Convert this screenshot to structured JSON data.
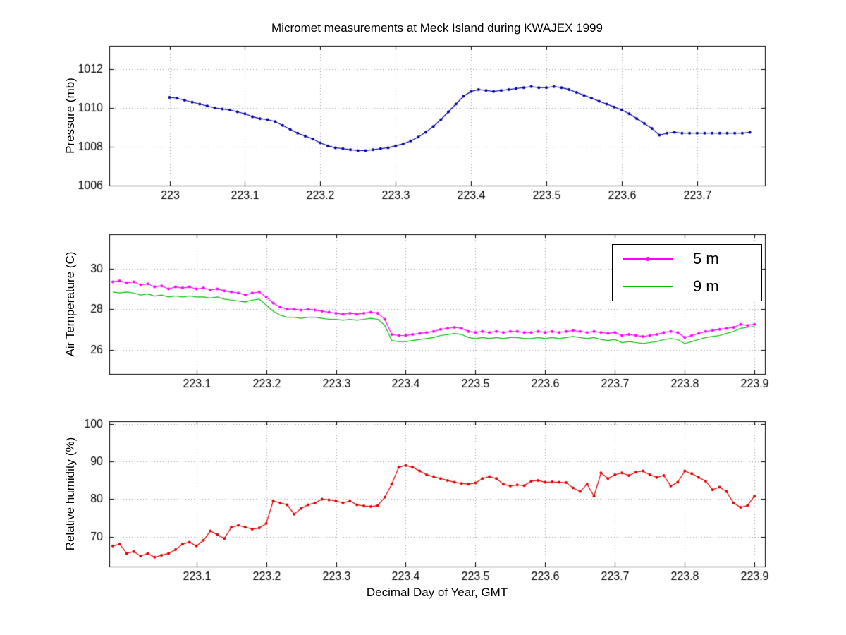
{
  "figure": {
    "title": "Micromet measurements at Meck Island during KWAJEX 1999",
    "xlabel": "Decimal Day of Year, GMT",
    "background": "#ffffff"
  },
  "chart_data": [
    {
      "type": "line",
      "ylabel": "Pressure (mb)",
      "xlim": [
        222.92,
        223.79
      ],
      "ylim": [
        1006,
        1013.2
      ],
      "grid": true,
      "xtick_values": [
        223,
        223.1,
        223.2,
        223.3,
        223.4,
        223.5,
        223.6,
        223.7
      ],
      "xtick_labels": [
        "223",
        "223.1",
        "223.2",
        "223.3",
        "223.4",
        "223.5",
        "223.6",
        "223.7"
      ],
      "ytick_values": [
        1006,
        1008,
        1010,
        1012
      ],
      "ytick_labels": [
        "1006",
        "1008",
        "1010",
        "1012"
      ],
      "series": [
        {
          "name": "Pressure",
          "color": "#0000A8",
          "marker": "dot",
          "x_start": 223.0,
          "x_step": 0.01,
          "values": [
            1010.55,
            1010.5,
            1010.4,
            1010.3,
            1010.2,
            1010.1,
            1010.0,
            1009.95,
            1009.9,
            1009.8,
            1009.7,
            1009.55,
            1009.45,
            1009.4,
            1009.3,
            1009.1,
            1008.9,
            1008.7,
            1008.55,
            1008.4,
            1008.2,
            1008.05,
            1007.95,
            1007.9,
            1007.85,
            1007.8,
            1007.8,
            1007.85,
            1007.9,
            1007.95,
            1008.05,
            1008.15,
            1008.3,
            1008.5,
            1008.75,
            1009.05,
            1009.4,
            1009.8,
            1010.2,
            1010.6,
            1010.85,
            1010.95,
            1010.9,
            1010.85,
            1010.9,
            1010.95,
            1011.0,
            1011.05,
            1011.1,
            1011.05,
            1011.05,
            1011.1,
            1011.05,
            1010.95,
            1010.8,
            1010.65,
            1010.5,
            1010.35,
            1010.2,
            1010.05,
            1009.9,
            1009.7,
            1009.45,
            1009.2,
            1008.95,
            1008.6,
            1008.7,
            1008.75,
            1008.7,
            1008.7,
            1008.7,
            1008.7,
            1008.7,
            1008.7,
            1008.7,
            1008.7,
            1008.7,
            1008.75
          ]
        }
      ]
    },
    {
      "type": "line",
      "ylabel": "Air Temperature (C)",
      "xlim": [
        222.975,
        223.915
      ],
      "ylim": [
        24.8,
        31.7
      ],
      "grid": true,
      "legend_position": "northeast",
      "xtick_values": [
        223.1,
        223.2,
        223.3,
        223.4,
        223.5,
        223.6,
        223.7,
        223.8,
        223.9
      ],
      "xtick_labels": [
        "223.1",
        "223.2",
        "223.3",
        "223.4",
        "223.5",
        "223.6",
        "223.7",
        "223.8",
        "223.9"
      ],
      "ytick_values": [
        26,
        28,
        30
      ],
      "ytick_labels": [
        "26",
        "28",
        "30"
      ],
      "series": [
        {
          "name": "5 m",
          "color": "#FF00FF",
          "marker": "dot",
          "x_start": 222.98,
          "x_step": 0.01,
          "values": [
            29.35,
            29.4,
            29.3,
            29.35,
            29.2,
            29.25,
            29.1,
            29.15,
            29.0,
            29.1,
            29.05,
            29.1,
            29.0,
            29.05,
            28.95,
            29.0,
            28.9,
            28.85,
            28.8,
            28.7,
            28.8,
            28.85,
            28.6,
            28.3,
            28.1,
            28.0,
            28.0,
            27.95,
            28.0,
            27.95,
            27.9,
            27.85,
            27.8,
            27.75,
            27.8,
            27.75,
            27.8,
            27.85,
            27.8,
            27.5,
            26.75,
            26.7,
            26.7,
            26.75,
            26.8,
            26.85,
            26.9,
            27.0,
            27.05,
            27.1,
            27.05,
            26.9,
            26.85,
            26.9,
            26.85,
            26.9,
            26.85,
            26.9,
            26.9,
            26.85,
            26.85,
            26.9,
            26.85,
            26.9,
            26.85,
            26.9,
            26.95,
            26.9,
            26.85,
            26.9,
            26.85,
            26.8,
            26.85,
            26.7,
            26.75,
            26.7,
            26.65,
            26.7,
            26.75,
            26.85,
            26.9,
            26.85,
            26.6,
            26.7,
            26.8,
            26.9,
            26.95,
            27.0,
            27.05,
            27.1,
            27.25,
            27.2,
            27.25
          ]
        },
        {
          "name": "9 m",
          "color": "#00BB00",
          "marker": "none",
          "x_start": 222.98,
          "x_step": 0.01,
          "values": [
            28.85,
            28.8,
            28.85,
            28.8,
            28.7,
            28.75,
            28.65,
            28.7,
            28.6,
            28.65,
            28.6,
            28.65,
            28.6,
            28.6,
            28.55,
            28.6,
            28.5,
            28.45,
            28.4,
            28.35,
            28.45,
            28.5,
            28.2,
            27.9,
            27.7,
            27.6,
            27.6,
            27.55,
            27.6,
            27.6,
            27.55,
            27.5,
            27.5,
            27.45,
            27.5,
            27.45,
            27.5,
            27.55,
            27.5,
            27.2,
            26.45,
            26.4,
            26.4,
            26.45,
            26.5,
            26.55,
            26.6,
            26.7,
            26.75,
            26.8,
            26.75,
            26.6,
            26.55,
            26.6,
            26.55,
            26.6,
            26.55,
            26.6,
            26.6,
            26.55,
            26.55,
            26.6,
            26.55,
            26.6,
            26.55,
            26.6,
            26.65,
            26.6,
            26.55,
            26.6,
            26.5,
            26.45,
            26.5,
            26.35,
            26.4,
            26.35,
            26.3,
            26.35,
            26.4,
            26.5,
            26.55,
            26.5,
            26.3,
            26.4,
            26.5,
            26.6,
            26.65,
            26.7,
            26.8,
            26.9,
            27.05,
            27.1,
            27.15
          ]
        }
      ]
    },
    {
      "type": "line",
      "ylabel": "Relative humidity (%)",
      "xlim": [
        222.975,
        223.915
      ],
      "ylim": [
        62,
        100.8
      ],
      "grid": true,
      "xtick_values": [
        223.1,
        223.2,
        223.3,
        223.4,
        223.5,
        223.6,
        223.7,
        223.8,
        223.9
      ],
      "xtick_labels": [
        "223.1",
        "223.2",
        "223.3",
        "223.4",
        "223.5",
        "223.6",
        "223.7",
        "223.8",
        "223.9"
      ],
      "ytick_values": [
        70,
        80,
        90,
        100
      ],
      "ytick_labels": [
        "70",
        "80",
        "90",
        "100"
      ],
      "series": [
        {
          "name": "Relative humidity",
          "color": "#DC0000",
          "marker": "dot",
          "x_start": 222.98,
          "x_step": 0.01,
          "values": [
            67.5,
            68,
            65.5,
            66,
            64.8,
            65.5,
            64.5,
            65,
            65.5,
            66.5,
            68,
            68.5,
            67.5,
            69,
            71.5,
            70.5,
            69.5,
            72.5,
            73,
            72.5,
            72,
            72.3,
            73.5,
            79.5,
            79,
            78.5,
            76,
            77.5,
            78.5,
            79,
            80,
            79.8,
            79.5,
            79,
            79.5,
            78.5,
            78.2,
            78,
            78.3,
            80.5,
            84,
            88.5,
            89,
            88.5,
            87.5,
            86.5,
            86,
            85.5,
            85,
            84.5,
            84.2,
            84,
            84.3,
            85.5,
            86,
            85.5,
            84,
            83.5,
            83.8,
            83.6,
            84.8,
            85,
            84.5,
            84.6,
            84.5,
            84.4,
            83,
            82,
            84,
            80.8,
            87,
            85.5,
            86.5,
            87,
            86.3,
            87.2,
            87.5,
            86.5,
            85.8,
            86.3,
            83.5,
            84.5,
            87.5,
            86.8,
            85.8,
            84.8,
            82.5,
            83.2,
            82,
            79,
            77.8,
            78.3,
            80.8
          ]
        }
      ]
    }
  ]
}
